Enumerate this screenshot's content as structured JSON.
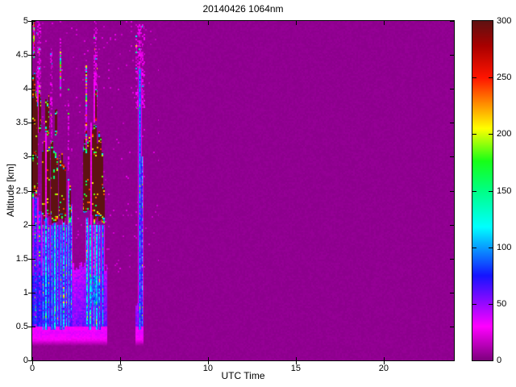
{
  "chart_data": {
    "type": "heatmap",
    "title": "20140426 1064nm",
    "xlabel": "UTC Time",
    "ylabel": "Altitude [km]",
    "xlim": [
      0,
      24
    ],
    "ylim": [
      0,
      5
    ],
    "xticks": [
      0,
      5,
      10,
      15,
      20
    ],
    "yticks": [
      0,
      0.5,
      1,
      1.5,
      2,
      2.5,
      3,
      3.5,
      4,
      4.5,
      5
    ],
    "grid": false,
    "colorbar": {
      "vmin": 0,
      "vmax": 300,
      "ticks": [
        0,
        50,
        100,
        150,
        200,
        250,
        300
      ],
      "position": "right"
    },
    "colormap": [
      {
        "value": 0,
        "color": "#7C007C"
      },
      {
        "value": 30,
        "color": "#FF00FF"
      },
      {
        "value": 75,
        "color": "#1414FF"
      },
      {
        "value": 118,
        "color": "#00FFFF"
      },
      {
        "value": 150,
        "color": "#00FF84"
      },
      {
        "value": 176,
        "color": "#17FF17"
      },
      {
        "value": 205,
        "color": "#FFFF00"
      },
      {
        "value": 250,
        "color": "#FF1400"
      },
      {
        "value": 278,
        "color": "#A80000"
      },
      {
        "value": 300,
        "color": "#5E1212"
      }
    ],
    "background_value": 4,
    "features": {
      "ambient_speckle": {
        "t0": 0.0,
        "t1": 7.2,
        "a0": 1.3,
        "a1": 5.0,
        "density": 0.018,
        "value": 18
      },
      "surface_bands": [
        {
          "t0": 0.0,
          "t1": 4.27,
          "a0": 0.3,
          "a1": 0.5,
          "value": 27
        },
        {
          "t0": 5.88,
          "t1": 6.35,
          "a0": 0.3,
          "a1": 0.5,
          "value": 27
        }
      ],
      "boundary_layers": [
        {
          "t0": 0.0,
          "t1": 2.25,
          "a0": 0.45,
          "a1": 2.0,
          "value": 44,
          "core": {
            "t0": 0.0,
            "t1": 1.05,
            "a0": 0.5,
            "a1": 1.25,
            "value": 72
          }
        },
        {
          "t0": 2.25,
          "t1": 4.27,
          "a0": 0.45,
          "a1": 1.45,
          "value": 40,
          "patch": {
            "t0": 3.25,
            "t1": 3.85,
            "a0": 0.8,
            "a1": 1.25,
            "value": 95
          }
        },
        {
          "t0": 5.88,
          "t1": 6.35,
          "a0": 0.45,
          "a1": 0.95,
          "value": 44
        }
      ],
      "clouds": [
        {
          "t0": 0.02,
          "t1": 0.3,
          "base": 2.35,
          "top": 4.2,
          "gap": 0.1
        },
        {
          "t0": 0.02,
          "t1": 0.22,
          "base": 2.9,
          "top": 4.3,
          "gap": 0.05
        },
        {
          "t0": 0.24,
          "t1": 0.52,
          "base": 3.35,
          "top": 4.05,
          "gap": 0.15
        },
        {
          "t0": 0.55,
          "t1": 1.02,
          "base": 2.05,
          "top": 3.35,
          "gap": 0.08
        },
        {
          "t0": 0.72,
          "t1": 0.98,
          "base": 3.3,
          "top": 4.0,
          "gap": 0.2
        },
        {
          "t0": 1.05,
          "t1": 1.48,
          "base": 2.0,
          "top": 3.3,
          "gap": 0.15
        },
        {
          "t0": 1.3,
          "t1": 1.4,
          "base": 3.3,
          "top": 3.85,
          "gap": 0.1
        },
        {
          "t0": 1.52,
          "t1": 1.95,
          "base": 2.0,
          "top": 3.15,
          "gap": 0.12
        },
        {
          "t0": 2.02,
          "t1": 2.2,
          "base": 2.0,
          "top": 2.6,
          "gap": 0.25
        },
        {
          "t0": 2.9,
          "t1": 3.3,
          "base": 2.1,
          "top": 3.35,
          "gap": 0.1
        },
        {
          "t0": 3.32,
          "t1": 4.05,
          "base": 2.0,
          "top": 3.5,
          "gap": 0.12
        },
        {
          "t0": 3.5,
          "t1": 3.68,
          "base": 3.5,
          "top": 4.15,
          "gap": 0.15
        },
        {
          "t0": 4.0,
          "t1": 4.12,
          "base": 2.0,
          "top": 2.75,
          "gap": 0.1
        }
      ],
      "fall_streaks": [
        {
          "tc": 0.18,
          "w": 0.09,
          "top": 2.4,
          "bot": 0.5,
          "value": 72
        },
        {
          "tc": 0.42,
          "w": 0.06,
          "top": 2.2,
          "bot": 0.5,
          "value": 68
        },
        {
          "tc": 0.63,
          "w": 0.05,
          "top": 2.0,
          "bot": 0.45,
          "value": 105
        },
        {
          "tc": 0.79,
          "w": 0.06,
          "top": 2.1,
          "bot": 0.45,
          "value": 110
        },
        {
          "tc": 0.95,
          "w": 0.05,
          "top": 2.0,
          "bot": 0.5,
          "value": 100
        },
        {
          "tc": 1.12,
          "w": 0.05,
          "top": 2.0,
          "bot": 0.45,
          "value": 108
        },
        {
          "tc": 1.28,
          "w": 0.06,
          "top": 2.05,
          "bot": 0.45,
          "value": 112
        },
        {
          "tc": 1.45,
          "w": 0.05,
          "top": 2.0,
          "bot": 0.5,
          "value": 105
        },
        {
          "tc": 1.62,
          "w": 0.05,
          "top": 2.0,
          "bot": 0.45,
          "value": 110
        },
        {
          "tc": 1.79,
          "w": 0.05,
          "top": 2.05,
          "bot": 0.45,
          "value": 100
        },
        {
          "tc": 1.95,
          "w": 0.06,
          "top": 2.0,
          "bot": 0.5,
          "value": 108
        },
        {
          "tc": 2.1,
          "w": 0.05,
          "top": 2.5,
          "bot": 0.5,
          "value": 112
        },
        {
          "tc": 2.22,
          "w": 0.04,
          "top": 2.3,
          "bot": 0.6,
          "value": 100
        },
        {
          "tc": 3.12,
          "w": 0.05,
          "top": 2.1,
          "bot": 0.5,
          "value": 108
        },
        {
          "tc": 3.3,
          "w": 0.06,
          "top": 2.0,
          "bot": 0.45,
          "value": 112
        },
        {
          "tc": 3.5,
          "w": 0.05,
          "top": 2.0,
          "bot": 0.5,
          "value": 105
        },
        {
          "tc": 3.68,
          "w": 0.06,
          "top": 2.0,
          "bot": 0.45,
          "value": 110
        },
        {
          "tc": 3.85,
          "w": 0.05,
          "top": 2.0,
          "bot": 0.45,
          "value": 105
        },
        {
          "tc": 4.02,
          "w": 0.06,
          "top": 2.0,
          "bot": 0.5,
          "value": 108
        },
        {
          "tc": 6.13,
          "w": 0.06,
          "top": 4.3,
          "bot": 0.45,
          "value": 105
        },
        {
          "tc": 6.26,
          "w": 0.04,
          "top": 3.0,
          "bot": 0.5,
          "value": 90
        }
      ],
      "bright_streaks": [
        {
          "tc": 0.1,
          "w": 0.06,
          "a0": 4.45,
          "a1": 5.0
        },
        {
          "tc": 1.6,
          "w": 0.05,
          "a0": 4.0,
          "a1": 4.55
        },
        {
          "tc": 3.06,
          "w": 0.05,
          "a0": 3.3,
          "a1": 4.35
        }
      ],
      "plumes": [
        {
          "tc": 0.38,
          "w": 0.14,
          "top": 5.0,
          "base": 3.9
        },
        {
          "tc": 1.1,
          "w": 0.07,
          "top": 4.6,
          "base": 3.3
        },
        {
          "tc": 1.6,
          "w": 0.06,
          "top": 4.75,
          "base": 4.3
        },
        {
          "tc": 2.06,
          "w": 0.06,
          "top": 4.0,
          "base": 2.6
        },
        {
          "tc": 3.07,
          "w": 0.07,
          "top": 4.45,
          "base": 3.3
        },
        {
          "tc": 3.6,
          "w": 0.13,
          "top": 5.0,
          "base": 4.0
        },
        {
          "tc": 6.15,
          "w": 0.28,
          "top": 4.95,
          "base": 4.1
        }
      ]
    }
  }
}
